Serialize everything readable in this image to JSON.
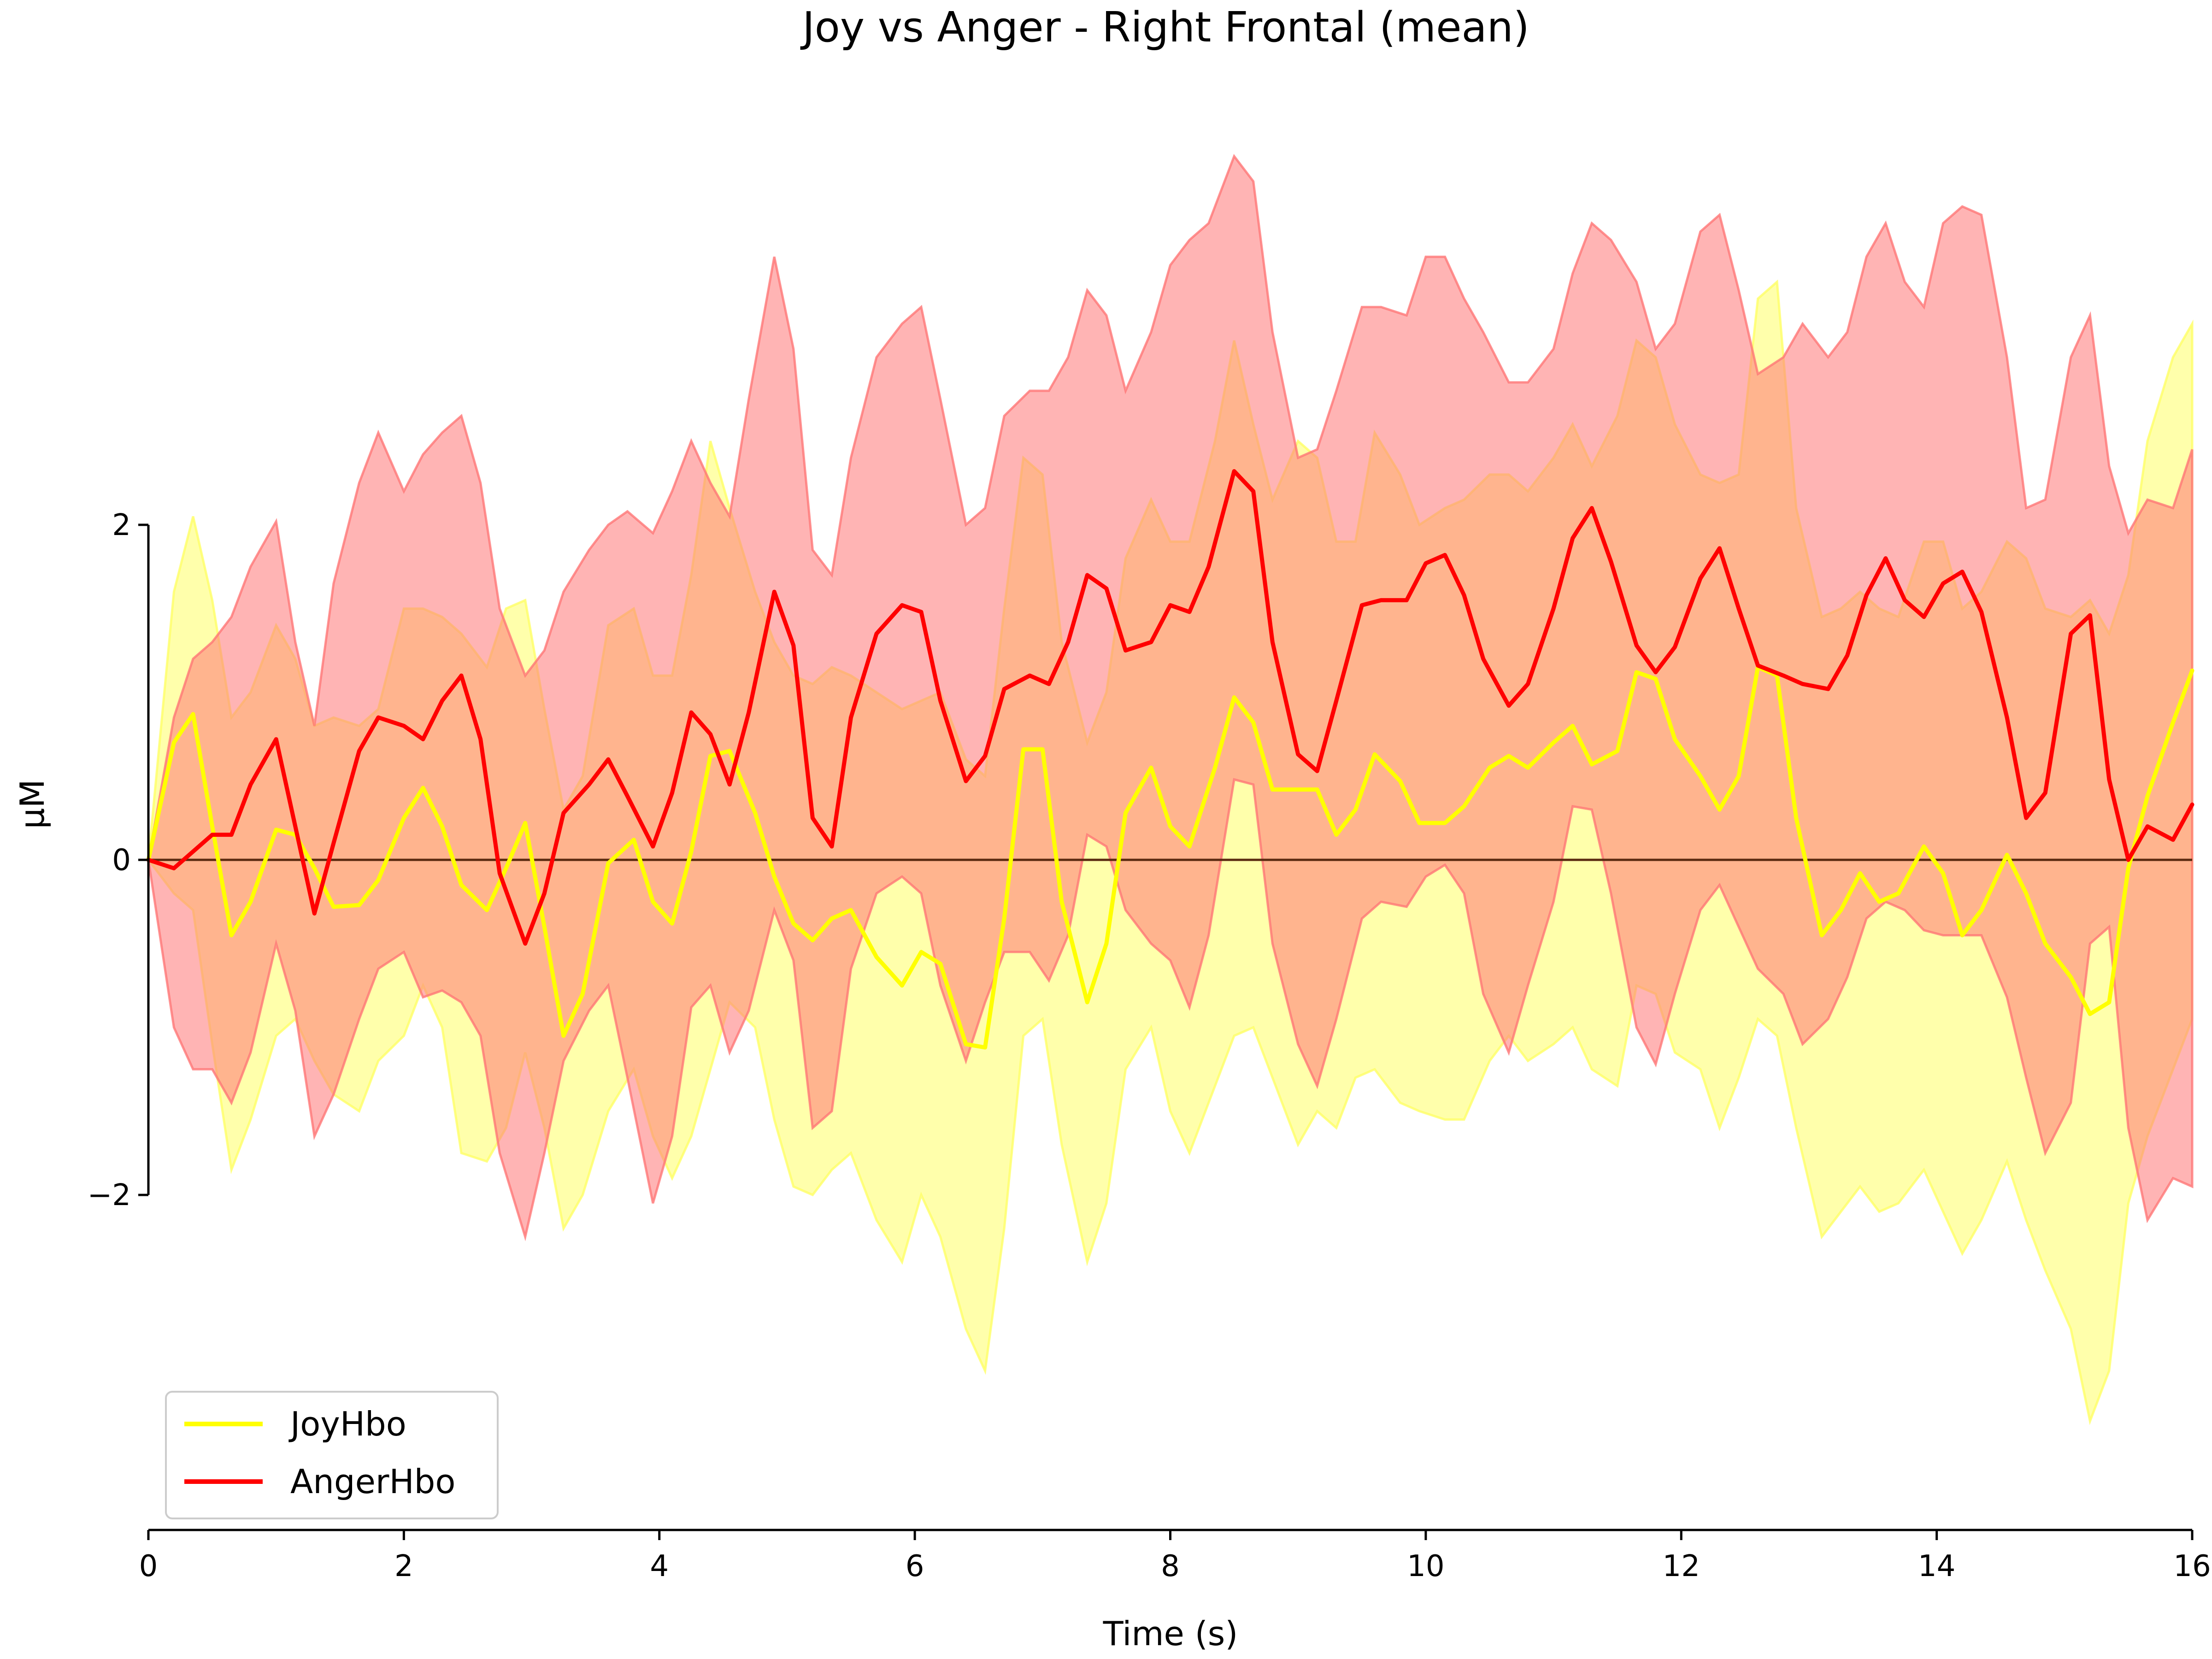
{
  "chart_data": {
    "type": "line",
    "title": "Joy vs Anger - Right Frontal (mean)",
    "xlabel": "Time (s)",
    "ylabel": "µM",
    "xlim": [
      0,
      16
    ],
    "ylim": [
      -4.0,
      4.5
    ],
    "xticks": [
      0,
      2,
      4,
      6,
      8,
      10,
      12,
      14,
      16
    ],
    "xtick_labels": [
      "0",
      "2",
      "4",
      "6",
      "8",
      "10",
      "12",
      "14",
      "16"
    ],
    "yticks": [
      -2,
      0,
      2
    ],
    "ytick_labels": [
      "−2",
      "0",
      "2"
    ],
    "grid": false,
    "legend_position": "lower-left",
    "zero_line": true,
    "series": [
      {
        "name": "JoyHbo",
        "color": "#ffff00",
        "band_color": "#ffff66",
        "x": [
          0,
          0.2,
          0.35,
          0.5,
          0.65,
          0.8,
          1.0,
          1.15,
          1.3,
          1.45,
          1.65,
          1.8,
          2.0,
          2.15,
          2.3,
          2.45,
          2.65,
          2.8,
          2.95,
          3.1,
          3.25,
          3.4,
          3.6,
          3.8,
          3.95,
          4.1,
          4.25,
          4.4,
          4.55,
          4.75,
          4.9,
          5.05,
          5.2,
          5.35,
          5.5,
          5.7,
          5.9,
          6.05,
          6.2,
          6.4,
          6.55,
          6.7,
          6.85,
          7.0,
          7.15,
          7.35,
          7.5,
          7.65,
          7.85,
          8.0,
          8.15,
          8.35,
          8.5,
          8.65,
          8.8,
          9.0,
          9.15,
          9.3,
          9.45,
          9.6,
          9.8,
          9.95,
          10.15,
          10.3,
          10.5,
          10.65,
          10.8,
          11.0,
          11.15,
          11.3,
          11.5,
          11.65,
          11.8,
          11.95,
          12.15,
          12.3,
          12.45,
          12.6,
          12.75,
          12.9,
          13.1,
          13.25,
          13.4,
          13.55,
          13.7,
          13.9,
          14.05,
          14.2,
          14.35,
          14.55,
          14.7,
          14.85,
          15.05,
          15.2,
          15.35,
          15.5,
          15.65,
          15.85,
          16.0
        ],
        "y": [
          0.0,
          0.7,
          0.87,
          0.2,
          -0.45,
          -0.25,
          0.18,
          0.15,
          -0.05,
          -0.28,
          -0.27,
          -0.12,
          0.25,
          0.43,
          0.2,
          -0.15,
          -0.3,
          -0.05,
          0.22,
          -0.4,
          -1.05,
          -0.8,
          -0.02,
          0.12,
          -0.25,
          -0.38,
          0.05,
          0.62,
          0.65,
          0.28,
          -0.1,
          -0.38,
          -0.48,
          -0.35,
          -0.3,
          -0.58,
          -0.75,
          -0.55,
          -0.62,
          -1.1,
          -1.12,
          -0.35,
          0.66,
          0.66,
          -0.25,
          -0.85,
          -0.5,
          0.28,
          0.55,
          0.2,
          0.08,
          0.55,
          0.97,
          0.82,
          0.42,
          0.42,
          0.42,
          0.15,
          0.3,
          0.63,
          0.47,
          0.22,
          0.22,
          0.32,
          0.55,
          0.62,
          0.55,
          0.7,
          0.8,
          0.57,
          0.65,
          1.12,
          1.08,
          0.72,
          0.5,
          0.3,
          0.5,
          1.15,
          1.1,
          0.25,
          -0.45,
          -0.3,
          -0.08,
          -0.25,
          -0.2,
          0.08,
          -0.08,
          -0.45,
          -0.3,
          0.03,
          -0.2,
          -0.5,
          -0.7,
          -0.92,
          -0.85,
          -0.05,
          0.38,
          0.82,
          1.13
        ],
        "upper": [
          0.0,
          1.6,
          2.05,
          1.55,
          0.85,
          1.0,
          1.4,
          1.2,
          0.8,
          0.85,
          0.8,
          0.9,
          1.5,
          1.5,
          1.45,
          1.35,
          1.15,
          1.5,
          1.55,
          0.9,
          0.3,
          0.5,
          1.4,
          1.5,
          1.1,
          1.1,
          1.7,
          2.5,
          2.1,
          1.6,
          1.3,
          1.1,
          1.05,
          1.15,
          1.1,
          1.0,
          0.9,
          0.95,
          1.0,
          0.6,
          0.5,
          1.5,
          2.4,
          2.3,
          1.3,
          0.7,
          1.0,
          1.8,
          2.15,
          1.9,
          1.9,
          2.5,
          3.1,
          2.6,
          2.15,
          2.5,
          2.4,
          1.9,
          1.9,
          2.55,
          2.3,
          2.0,
          2.1,
          2.15,
          2.3,
          2.3,
          2.2,
          2.4,
          2.6,
          2.35,
          2.65,
          3.1,
          3.0,
          2.6,
          2.3,
          2.25,
          2.3,
          3.35,
          3.45,
          2.1,
          1.45,
          1.5,
          1.6,
          1.5,
          1.45,
          1.9,
          1.9,
          1.5,
          1.6,
          1.9,
          1.8,
          1.5,
          1.45,
          1.55,
          1.35,
          1.7,
          2.5,
          3.0,
          3.2
        ],
        "lower": [
          0.0,
          -0.2,
          -0.3,
          -1.1,
          -1.85,
          -1.55,
          -1.05,
          -0.95,
          -1.2,
          -1.4,
          -1.5,
          -1.2,
          -1.05,
          -0.75,
          -1.0,
          -1.75,
          -1.8,
          -1.6,
          -1.15,
          -1.6,
          -2.2,
          -2.0,
          -1.5,
          -1.25,
          -1.65,
          -1.9,
          -1.65,
          -1.25,
          -0.85,
          -1.0,
          -1.55,
          -1.95,
          -2.0,
          -1.85,
          -1.75,
          -2.15,
          -2.4,
          -2.0,
          -2.25,
          -2.8,
          -3.05,
          -2.2,
          -1.05,
          -0.95,
          -1.7,
          -2.4,
          -2.05,
          -1.25,
          -1.0,
          -1.5,
          -1.75,
          -1.35,
          -1.05,
          -1.0,
          -1.3,
          -1.7,
          -1.5,
          -1.6,
          -1.3,
          -1.25,
          -1.45,
          -1.5,
          -1.55,
          -1.55,
          -1.2,
          -1.05,
          -1.2,
          -1.1,
          -1.0,
          -1.25,
          -1.35,
          -0.75,
          -0.8,
          -1.15,
          -1.25,
          -1.6,
          -1.3,
          -0.95,
          -1.05,
          -1.6,
          -2.25,
          -2.1,
          -1.95,
          -2.1,
          -2.05,
          -1.85,
          -2.1,
          -2.35,
          -2.15,
          -1.8,
          -2.15,
          -2.45,
          -2.8,
          -3.35,
          -3.05,
          -2.05,
          -1.65,
          -1.25,
          -0.95
        ]
      },
      {
        "name": "AngerHbo",
        "color": "#ff0000",
        "band_color": "#ff7777",
        "x": [
          0,
          0.2,
          0.35,
          0.5,
          0.65,
          0.8,
          1.0,
          1.15,
          1.3,
          1.45,
          1.65,
          1.8,
          2.0,
          2.15,
          2.3,
          2.45,
          2.6,
          2.75,
          2.95,
          3.1,
          3.25,
          3.45,
          3.6,
          3.75,
          3.95,
          4.1,
          4.25,
          4.4,
          4.55,
          4.7,
          4.9,
          5.05,
          5.2,
          5.35,
          5.5,
          5.7,
          5.9,
          6.05,
          6.2,
          6.4,
          6.55,
          6.7,
          6.9,
          7.05,
          7.2,
          7.35,
          7.5,
          7.65,
          7.85,
          8.0,
          8.15,
          8.3,
          8.5,
          8.65,
          8.8,
          9.0,
          9.15,
          9.3,
          9.5,
          9.65,
          9.85,
          10.0,
          10.15,
          10.3,
          10.45,
          10.65,
          10.8,
          11.0,
          11.15,
          11.3,
          11.45,
          11.65,
          11.8,
          11.95,
          12.15,
          12.3,
          12.45,
          12.6,
          12.8,
          12.95,
          13.15,
          13.3,
          13.45,
          13.6,
          13.75,
          13.9,
          14.05,
          14.2,
          14.35,
          14.55,
          14.7,
          14.85,
          15.05,
          15.2,
          15.35,
          15.5,
          15.65,
          15.85,
          16.0
        ],
        "y": [
          0.0,
          -0.05,
          0.05,
          0.15,
          0.15,
          0.45,
          0.72,
          0.2,
          -0.32,
          0.1,
          0.65,
          0.85,
          0.8,
          0.72,
          0.95,
          1.1,
          0.72,
          -0.08,
          -0.5,
          -0.2,
          0.28,
          0.45,
          0.6,
          0.38,
          0.08,
          0.4,
          0.88,
          0.75,
          0.45,
          0.88,
          1.6,
          1.28,
          0.25,
          0.08,
          0.85,
          1.35,
          1.52,
          1.48,
          0.95,
          0.47,
          0.62,
          1.02,
          1.1,
          1.05,
          1.3,
          1.7,
          1.62,
          1.25,
          1.3,
          1.52,
          1.48,
          1.75,
          2.32,
          2.2,
          1.3,
          0.63,
          0.53,
          0.95,
          1.52,
          1.55,
          1.55,
          1.77,
          1.82,
          1.58,
          1.2,
          0.92,
          1.05,
          1.5,
          1.92,
          2.1,
          1.78,
          1.28,
          1.12,
          1.27,
          1.68,
          1.86,
          1.5,
          1.16,
          1.1,
          1.05,
          1.02,
          1.22,
          1.58,
          1.8,
          1.55,
          1.45,
          1.65,
          1.72,
          1.48,
          0.85,
          0.25,
          0.4,
          1.35,
          1.46,
          0.48,
          0.0,
          0.2,
          0.12,
          0.33
        ],
        "upper": [
          0.0,
          0.85,
          1.2,
          1.3,
          1.45,
          1.75,
          2.02,
          1.3,
          0.8,
          1.65,
          2.25,
          2.55,
          2.2,
          2.42,
          2.55,
          2.65,
          2.25,
          1.5,
          1.1,
          1.25,
          1.6,
          1.85,
          2.0,
          2.08,
          1.95,
          2.2,
          2.5,
          2.25,
          2.05,
          2.75,
          3.6,
          3.05,
          1.85,
          1.7,
          2.4,
          3.0,
          3.2,
          3.3,
          2.75,
          2.0,
          2.1,
          2.65,
          2.8,
          2.8,
          3.0,
          3.4,
          3.25,
          2.8,
          3.15,
          3.55,
          3.7,
          3.8,
          4.2,
          4.05,
          3.15,
          2.4,
          2.45,
          2.8,
          3.3,
          3.3,
          3.25,
          3.6,
          3.6,
          3.35,
          3.15,
          2.85,
          2.85,
          3.05,
          3.5,
          3.8,
          3.7,
          3.45,
          3.05,
          3.2,
          3.75,
          3.85,
          3.4,
          2.9,
          3.0,
          3.2,
          3.0,
          3.15,
          3.6,
          3.8,
          3.45,
          3.3,
          3.8,
          3.9,
          3.85,
          3.0,
          2.1,
          2.15,
          3.0,
          3.25,
          2.35,
          1.95,
          2.15,
          2.1,
          2.45
        ],
        "lower": [
          0.0,
          -1.0,
          -1.25,
          -1.25,
          -1.45,
          -1.15,
          -0.5,
          -0.9,
          -1.65,
          -1.4,
          -0.95,
          -0.65,
          -0.55,
          -0.82,
          -0.78,
          -0.85,
          -1.05,
          -1.75,
          -2.25,
          -1.75,
          -1.2,
          -0.9,
          -0.75,
          -1.3,
          -2.05,
          -1.65,
          -0.88,
          -0.75,
          -1.15,
          -0.9,
          -0.3,
          -0.6,
          -1.6,
          -1.5,
          -0.65,
          -0.2,
          -0.1,
          -0.2,
          -0.75,
          -1.2,
          -0.85,
          -0.55,
          -0.55,
          -0.72,
          -0.45,
          0.15,
          0.08,
          -0.3,
          -0.5,
          -0.6,
          -0.88,
          -0.45,
          0.48,
          0.45,
          -0.5,
          -1.1,
          -1.35,
          -0.95,
          -0.35,
          -0.25,
          -0.28,
          -0.1,
          -0.03,
          -0.2,
          -0.8,
          -1.15,
          -0.75,
          -0.25,
          0.32,
          0.3,
          -0.2,
          -1.0,
          -1.22,
          -0.8,
          -0.3,
          -0.15,
          -0.4,
          -0.65,
          -0.8,
          -1.1,
          -0.95,
          -0.7,
          -0.35,
          -0.25,
          -0.3,
          -0.42,
          -0.45,
          -0.45,
          -0.45,
          -0.82,
          -1.3,
          -1.75,
          -1.45,
          -0.5,
          -0.4,
          -1.6,
          -2.15,
          -1.9,
          -1.95
        ]
      }
    ]
  }
}
